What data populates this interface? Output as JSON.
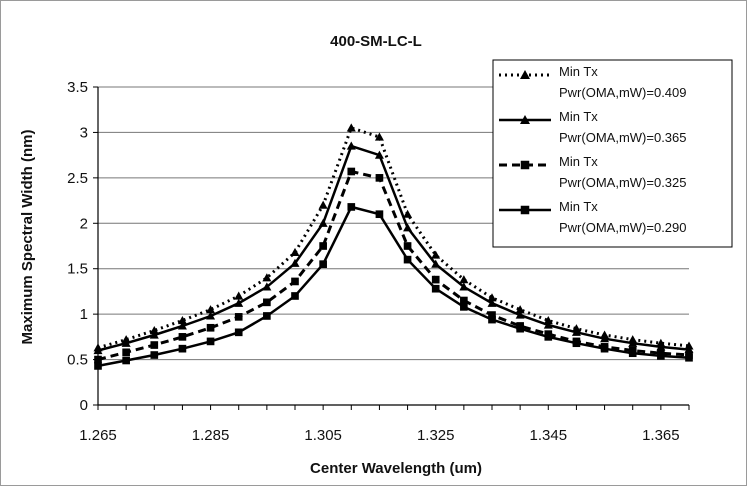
{
  "chart_data": {
    "type": "line",
    "title": "400-SM-LC-L",
    "xlabel": "Center Wavelength (um)",
    "ylabel": "Maximum Spectral Width (nm)",
    "xlim": [
      1.265,
      1.37
    ],
    "ylim": [
      0,
      3.5
    ],
    "xticks": [
      "1.265",
      "1.285",
      "1.305",
      "1.325",
      "1.345",
      "1.365"
    ],
    "yticks": [
      "0",
      "0.5",
      "1",
      "1.5",
      "2",
      "2.5",
      "3",
      "3.5"
    ],
    "grid": "horizontal",
    "legend_position": "top-right",
    "x": [
      1.265,
      1.27,
      1.275,
      1.28,
      1.285,
      1.29,
      1.295,
      1.3,
      1.305,
      1.31,
      1.315,
      1.32,
      1.325,
      1.33,
      1.335,
      1.34,
      1.345,
      1.35,
      1.355,
      1.36,
      1.365,
      1.37
    ],
    "series": [
      {
        "name": "Min Tx Pwr(OMA,mW)=0.409",
        "line": "dotted",
        "marker": "triangle",
        "values": [
          0.63,
          0.72,
          0.82,
          0.93,
          1.05,
          1.2,
          1.4,
          1.68,
          2.2,
          3.05,
          2.95,
          2.1,
          1.65,
          1.38,
          1.18,
          1.05,
          0.93,
          0.84,
          0.77,
          0.72,
          0.68,
          0.65
        ]
      },
      {
        "name": "Min Tx Pwr(OMA,mW)=0.365",
        "line": "solid",
        "marker": "triangle",
        "values": [
          0.6,
          0.68,
          0.77,
          0.87,
          0.98,
          1.12,
          1.3,
          1.56,
          2.0,
          2.85,
          2.75,
          1.95,
          1.55,
          1.3,
          1.12,
          0.99,
          0.88,
          0.8,
          0.73,
          0.68,
          0.64,
          0.61
        ]
      },
      {
        "name": "Min Tx Pwr(OMA,mW)=0.325",
        "line": "dashed",
        "marker": "square",
        "values": [
          0.5,
          0.58,
          0.66,
          0.75,
          0.85,
          0.97,
          1.13,
          1.36,
          1.75,
          2.57,
          2.5,
          1.75,
          1.38,
          1.15,
          0.99,
          0.87,
          0.78,
          0.7,
          0.64,
          0.6,
          0.57,
          0.55
        ]
      },
      {
        "name": "Min Tx Pwr(OMA,mW)=0.290",
        "line": "solid",
        "marker": "square",
        "values": [
          0.43,
          0.49,
          0.55,
          0.62,
          0.7,
          0.8,
          0.98,
          1.2,
          1.55,
          2.18,
          2.1,
          1.6,
          1.28,
          1.08,
          0.94,
          0.84,
          0.75,
          0.68,
          0.62,
          0.57,
          0.54,
          0.52
        ]
      }
    ],
    "legend": [
      {
        "line1": "Min Tx",
        "line2": "Pwr(OMA,mW)=0.409"
      },
      {
        "line1": "Min Tx",
        "line2": "Pwr(OMA,mW)=0.365"
      },
      {
        "line1": "Min Tx",
        "line2": "Pwr(OMA,mW)=0.325"
      },
      {
        "line1": "Min Tx",
        "line2": "Pwr(OMA,mW)=0.290"
      }
    ]
  }
}
